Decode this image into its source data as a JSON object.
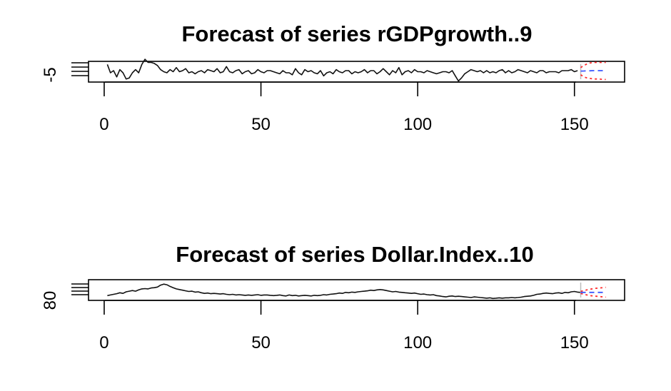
{
  "chart_data": [
    {
      "type": "line",
      "title": "Forecast of series rGDPgrowth..9",
      "xlabel": "",
      "ylabel": "",
      "xlim": [
        -5,
        166
      ],
      "ylim": [
        -9,
        11
      ],
      "x_ticks": [
        0,
        50,
        100,
        150
      ],
      "x_tick_labels": [
        "0",
        "50",
        "100",
        "150"
      ],
      "y_tick_labels": [
        "-5"
      ],
      "series": [
        {
          "values": [
            8,
            0,
            2,
            -4,
            3,
            0,
            -6,
            -5,
            0,
            3,
            0,
            8,
            13,
            10,
            10,
            9,
            7,
            3,
            1,
            0,
            3,
            1,
            5,
            1,
            2,
            4,
            0,
            1,
            -1,
            1,
            2,
            0,
            3,
            2,
            1,
            4,
            0,
            1,
            6,
            1,
            0,
            2,
            3,
            -1,
            1,
            2,
            -1,
            0,
            3,
            1,
            0,
            2,
            2,
            1,
            0,
            -1,
            2,
            0,
            0,
            -2,
            4,
            0,
            -2,
            3,
            1,
            2,
            0,
            -1,
            2,
            -3,
            0,
            1,
            -1,
            3,
            1,
            0,
            2,
            2,
            -1,
            1,
            0,
            1,
            3,
            0,
            2,
            2,
            -1,
            1,
            4,
            1,
            -2,
            2,
            0,
            5,
            -2,
            1,
            2,
            0,
            3,
            1,
            1,
            0,
            2,
            1,
            0,
            -1,
            0,
            1,
            1,
            0,
            2,
            -3,
            -8,
            -5,
            -1,
            1,
            3,
            2,
            1,
            2,
            0,
            2,
            0,
            1,
            0,
            2,
            3,
            0,
            2,
            0,
            1,
            3,
            2,
            1,
            0,
            2,
            1,
            0,
            2,
            2,
            0,
            1,
            1,
            1,
            0,
            2,
            2,
            2,
            3,
            1,
            2
          ]
        }
      ],
      "forecast": {
        "x": [
          152,
          153,
          154,
          155,
          156,
          157,
          158,
          159,
          160
        ],
        "mean": [
          1.6,
          1.7,
          1.8,
          1.9,
          2.0,
          2.0,
          2.0,
          2.0,
          2.0
        ],
        "lower": [
          -2,
          -4,
          -5,
          -5.5,
          -6,
          -6,
          -6,
          -6.5,
          -6.5
        ],
        "upper": [
          5,
          7,
          8.5,
          9.5,
          10,
          10,
          10,
          10,
          10
        ]
      }
    },
    {
      "type": "line",
      "title": "Forecast of series Dollar.Index..10",
      "xlabel": "",
      "ylabel": "",
      "xlim": [
        -5,
        166
      ],
      "ylim": [
        70,
        135
      ],
      "x_ticks": [
        0,
        50,
        100,
        150
      ],
      "x_tick_labels": [
        "0",
        "50",
        "100",
        "150"
      ],
      "y_tick_labels": [
        "80"
      ],
      "series": [
        {
          "values": [
            85,
            87,
            89,
            91,
            94,
            92,
            97,
            99,
            101,
            99,
            103,
            106,
            107,
            106,
            109,
            110,
            112,
            118,
            121,
            119,
            114,
            110,
            106,
            104,
            102,
            100,
            98,
            99,
            96,
            97,
            94,
            92,
            93,
            91,
            92,
            91,
            90,
            91,
            89,
            88,
            89,
            87,
            88,
            87,
            86,
            87,
            86,
            87,
            88,
            86,
            87,
            87,
            86,
            85,
            86,
            87,
            85,
            84,
            87,
            85,
            86,
            84,
            85,
            86,
            85,
            84,
            86,
            85,
            86,
            88,
            87,
            89,
            90,
            91,
            93,
            92,
            95,
            94,
            96,
            95,
            97,
            98,
            99,
            100,
            102,
            101,
            103,
            104,
            103,
            101,
            99,
            97,
            98,
            96,
            95,
            94,
            93,
            92,
            93,
            91,
            89,
            90,
            88,
            87,
            88,
            85,
            84,
            82,
            81,
            83,
            84,
            82,
            83,
            82,
            81,
            80,
            79,
            81,
            80,
            79,
            78,
            77,
            78,
            76,
            77,
            78,
            77,
            78,
            78,
            79,
            78,
            79,
            80,
            82,
            83,
            84,
            86,
            89,
            90,
            92,
            93,
            92,
            91,
            93,
            94,
            92,
            95,
            94,
            97,
            98,
            96,
            95
          ]
        }
      ],
      "forecast": {
        "x": [
          152,
          153,
          154,
          155,
          156,
          157,
          158,
          159,
          160
        ],
        "mean": [
          95,
          95,
          95,
          95,
          95,
          95,
          95,
          95,
          95
        ],
        "lower": [
          92,
          89,
          87,
          85,
          84,
          83,
          82,
          81,
          80
        ],
        "upper": [
          98,
          101,
          103,
          105,
          107,
          108,
          109,
          110,
          111
        ]
      }
    }
  ]
}
